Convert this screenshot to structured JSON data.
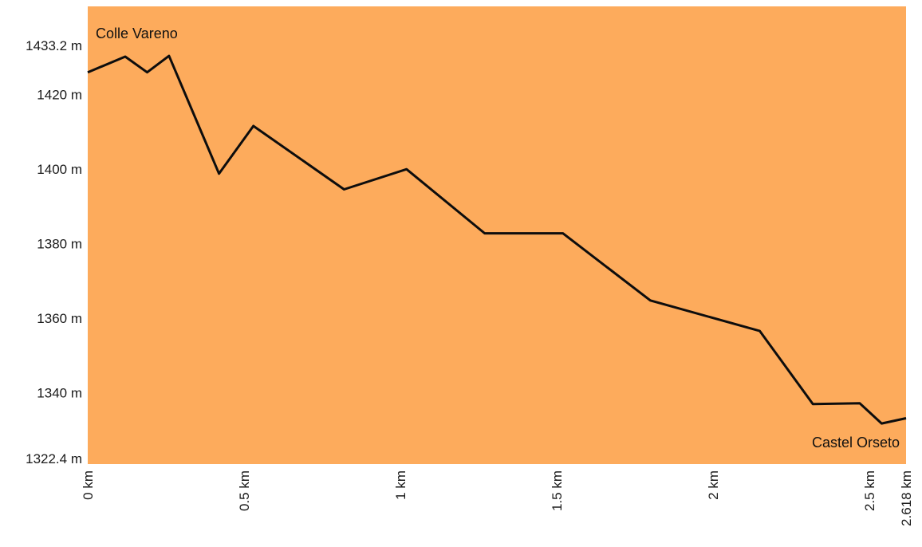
{
  "chart_data": {
    "type": "area",
    "title": "",
    "xlabel": "",
    "ylabel": "",
    "xlim": [
      0,
      2.618
    ],
    "ylim": [
      1322.4,
      1433.2
    ],
    "y_ticks": [
      {
        "value": 1433.2,
        "label": "1433.2 m"
      },
      {
        "value": 1420,
        "label": "1420 m"
      },
      {
        "value": 1400,
        "label": "1400 m"
      },
      {
        "value": 1380,
        "label": "1380 m"
      },
      {
        "value": 1360,
        "label": "1360 m"
      },
      {
        "value": 1340,
        "label": "1340 m"
      },
      {
        "value": 1322.4,
        "label": "1322.4 m"
      }
    ],
    "x_ticks": [
      {
        "value": 0,
        "label": "0 km"
      },
      {
        "value": 0.5,
        "label": "0.5 km"
      },
      {
        "value": 1,
        "label": "1 km"
      },
      {
        "value": 1.5,
        "label": "1.5 km"
      },
      {
        "value": 2,
        "label": "2 km"
      },
      {
        "value": 2.5,
        "label": "2.5 km"
      },
      {
        "value": 2.618,
        "label": "2.618 km"
      }
    ],
    "series": [
      {
        "x": [
          0,
          0.12,
          0.19,
          0.26,
          0.42,
          0.53,
          0.82,
          1.02,
          1.27,
          1.52,
          1.8,
          2.15,
          2.32,
          2.47,
          2.54,
          2.618
        ],
        "y": [
          1426.0,
          1430.2,
          1426.0,
          1430.4,
          1398.8,
          1411.6,
          1394.6,
          1400.0,
          1382.8,
          1382.8,
          1364.8,
          1356.6,
          1337.0,
          1337.2,
          1331.8,
          1333.2
        ]
      }
    ],
    "annotations": {
      "start": "Colle Vareno",
      "end": "Castel Orseto"
    },
    "grid": false,
    "colors": {
      "fill": "#fdab5c",
      "line": "#0d0d0d",
      "background": "#ffffff"
    }
  }
}
